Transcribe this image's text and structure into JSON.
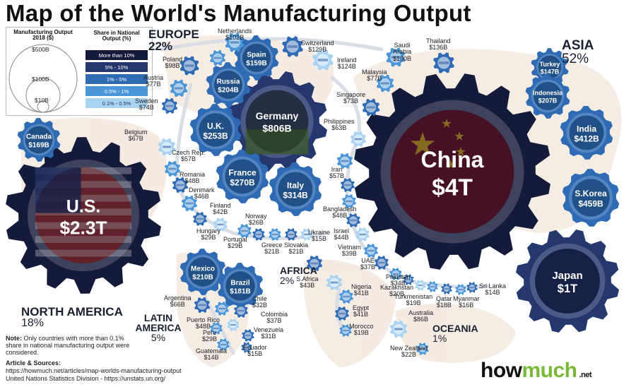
{
  "title": "Map of the World's Manufacturing Output",
  "legend": {
    "size_title": "Manufacturing Output 2018 ($)",
    "sizes": [
      "$500B",
      "$100B",
      "$10B"
    ],
    "share_title": "Share in National Output (%)",
    "shares": [
      {
        "label": "More than 10%",
        "color": "#141a3a"
      },
      {
        "label": "5% - 10%",
        "color": "#24386e"
      },
      {
        "label": "1% - 5%",
        "color": "#2f6bb4"
      },
      {
        "label": "0.5% - 1%",
        "color": "#4a96d8"
      },
      {
        "label": "0.1% - 0.5%",
        "color": "#a9d3f2"
      }
    ]
  },
  "regions": {
    "europe": {
      "name": "EUROPE",
      "pct": "22%"
    },
    "asia": {
      "name": "ASIA",
      "pct": "52%"
    },
    "north_america": {
      "name": "NORTH AMERICA",
      "pct": "18%"
    },
    "africa": {
      "name": "AFRICA",
      "pct": "2%"
    },
    "latin_america": {
      "name": "LATIN AMERICA",
      "pct": "5%"
    },
    "oceania": {
      "name": "OCEANIA",
      "pct": "1%"
    }
  },
  "big_gears": [
    {
      "name": "China",
      "value": "$4T",
      "tier": "More than 10%"
    },
    {
      "name": "U.S.",
      "value": "$2.3T",
      "tier": "More than 10%"
    },
    {
      "name": "Japan",
      "value": "$1T",
      "tier": "5% - 10%"
    },
    {
      "name": "Germany",
      "value": "$806B",
      "tier": "5% - 10%"
    }
  ],
  "mid_gears": [
    {
      "name": "Canada",
      "value": "$169B",
      "tier": "1% - 5%"
    },
    {
      "name": "Spain",
      "value": "$159B",
      "tier": "1% - 5%"
    },
    {
      "name": "Russia",
      "value": "$204B",
      "tier": "1% - 5%"
    },
    {
      "name": "U.K.",
      "value": "$253B",
      "tier": "1% - 5%"
    },
    {
      "name": "France",
      "value": "$270B",
      "tier": "1% - 5%"
    },
    {
      "name": "Italy",
      "value": "$314B",
      "tier": "1% - 5%"
    },
    {
      "name": "Mexico",
      "value": "$210B",
      "tier": "1% - 5%"
    },
    {
      "name": "Brazil",
      "value": "$181B",
      "tier": "1% - 5%"
    },
    {
      "name": "Turkey",
      "value": "$147B",
      "tier": "1% - 5%"
    },
    {
      "name": "Indonesia",
      "value": "$207B",
      "tier": "1% - 5%"
    },
    {
      "name": "India",
      "value": "$412B",
      "tier": "1% - 5%"
    },
    {
      "name": "S.Korea",
      "value": "$459B",
      "tier": "1% - 5%"
    }
  ],
  "small_labels": [
    {
      "name": "Netherlands",
      "value": "$102B"
    },
    {
      "name": "Switzerland",
      "value": "$129B"
    },
    {
      "name": "Ireland",
      "value": "$124B"
    },
    {
      "name": "Saudi Arabia",
      "value": "$100B"
    },
    {
      "name": "Thailand",
      "value": "$136B"
    },
    {
      "name": "Poland",
      "value": "$98B"
    },
    {
      "name": "Austria",
      "value": "$77B"
    },
    {
      "name": "Sweden",
      "value": "$74B"
    },
    {
      "name": "Belgium",
      "value": "$67B"
    },
    {
      "name": "Czech Rep.",
      "value": "$57B"
    },
    {
      "name": "Romania",
      "value": "$48B"
    },
    {
      "name": "Denmark",
      "value": "$46B"
    },
    {
      "name": "Finland",
      "value": "$42B"
    },
    {
      "name": "Norway",
      "value": "$26B"
    },
    {
      "name": "Hungary",
      "value": "$29B"
    },
    {
      "name": "Portugal",
      "value": "$29B"
    },
    {
      "name": "Greece",
      "value": "$21B"
    },
    {
      "name": "Slovakia",
      "value": "$21B"
    },
    {
      "name": "Ukraine",
      "value": "$15B"
    },
    {
      "name": "Malaysia",
      "value": "$77B"
    },
    {
      "name": "Singapore",
      "value": "$73B"
    },
    {
      "name": "Philippines",
      "value": "$63B"
    },
    {
      "name": "Iran",
      "value": "$57B"
    },
    {
      "name": "Bangladesh",
      "value": "$48B"
    },
    {
      "name": "Israel",
      "value": "$44B"
    },
    {
      "name": "Vietnam",
      "value": "$39B"
    },
    {
      "name": "UAE",
      "value": "$37B"
    },
    {
      "name": "Pakistan",
      "value": "$34B"
    },
    {
      "name": "Kazakhstan",
      "value": "$20B"
    },
    {
      "name": "Turkmenistan",
      "value": "$19B"
    },
    {
      "name": "Qatar",
      "value": "$18B"
    },
    {
      "name": "Myanmar",
      "value": "$16B"
    },
    {
      "name": "Sri Lanka",
      "value": "$14B"
    },
    {
      "name": "S.Africa",
      "value": "$43B"
    },
    {
      "name": "Nigeria",
      "value": "$41B"
    },
    {
      "name": "Egypt",
      "value": "$41B"
    },
    {
      "name": "Morocco",
      "value": "$19B"
    },
    {
      "name": "Australia",
      "value": "$86B"
    },
    {
      "name": "New Zealand",
      "value": "$22B"
    },
    {
      "name": "Argentina",
      "value": "$66B"
    },
    {
      "name": "Chile",
      "value": "$32B"
    },
    {
      "name": "Colombia",
      "value": "$37B"
    },
    {
      "name": "Puerto Rico",
      "value": "$48B"
    },
    {
      "name": "Venezuela",
      "value": "$31B"
    },
    {
      "name": "Peru",
      "value": "$29B"
    },
    {
      "name": "Ecuador",
      "value": "$15B"
    },
    {
      "name": "Guatemala",
      "value": "$14B"
    }
  ],
  "note_label": "Note:",
  "note_text": "Only countries with more than 0.1% share in national manufacturing output were considered.",
  "sources_label": "Article & Sources:",
  "source_1": "https://howmuch.net/articles/map-worlds-manufacturing-output",
  "source_2": "United Nations Statistics Division - https://unstats.un.org/",
  "logo": {
    "part1": "how",
    "part2": "much",
    "suffix": ".net"
  }
}
